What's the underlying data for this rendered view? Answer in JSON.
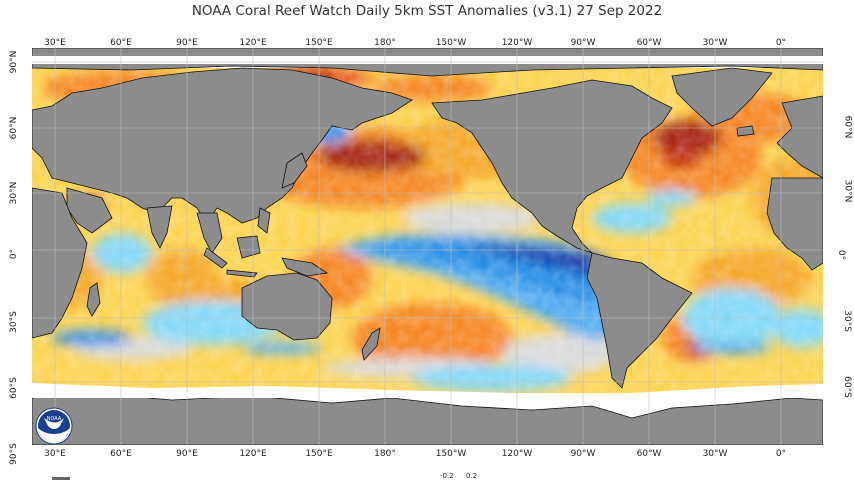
{
  "title": "NOAA Coral Reef Watch Daily 5km SST Anomalies  (v3.1)   27 Sep 2022",
  "logo_text": "NOAA",
  "longitude_ticks": [
    "30°E",
    "60°E",
    "90°E",
    "120°E",
    "150°E",
    "180°",
    "150°W",
    "120°W",
    "90°W",
    "60°W",
    "30°W",
    "0°"
  ],
  "latitude_ticks_left": [
    "90°N",
    "60°N",
    "30°N",
    "0°",
    "30°S",
    "60°S",
    "90°S"
  ],
  "latitude_ticks_right": [
    "60°N",
    "30°N",
    "0°",
    "30°S",
    "60°S"
  ],
  "colorbar_labels": [
    "-0.2",
    "0.2"
  ],
  "colors": {
    "land": "#8c8c8c",
    "ice": "#ffffff",
    "warm_strong": "#a31a0a",
    "warm": "#f5821f",
    "warm_light": "#fcd24a",
    "neutral": "#d9d9d9",
    "cool_light": "#7fd7f7",
    "cool": "#1e88e5",
    "cool_strong": "#0a2fa8"
  }
}
